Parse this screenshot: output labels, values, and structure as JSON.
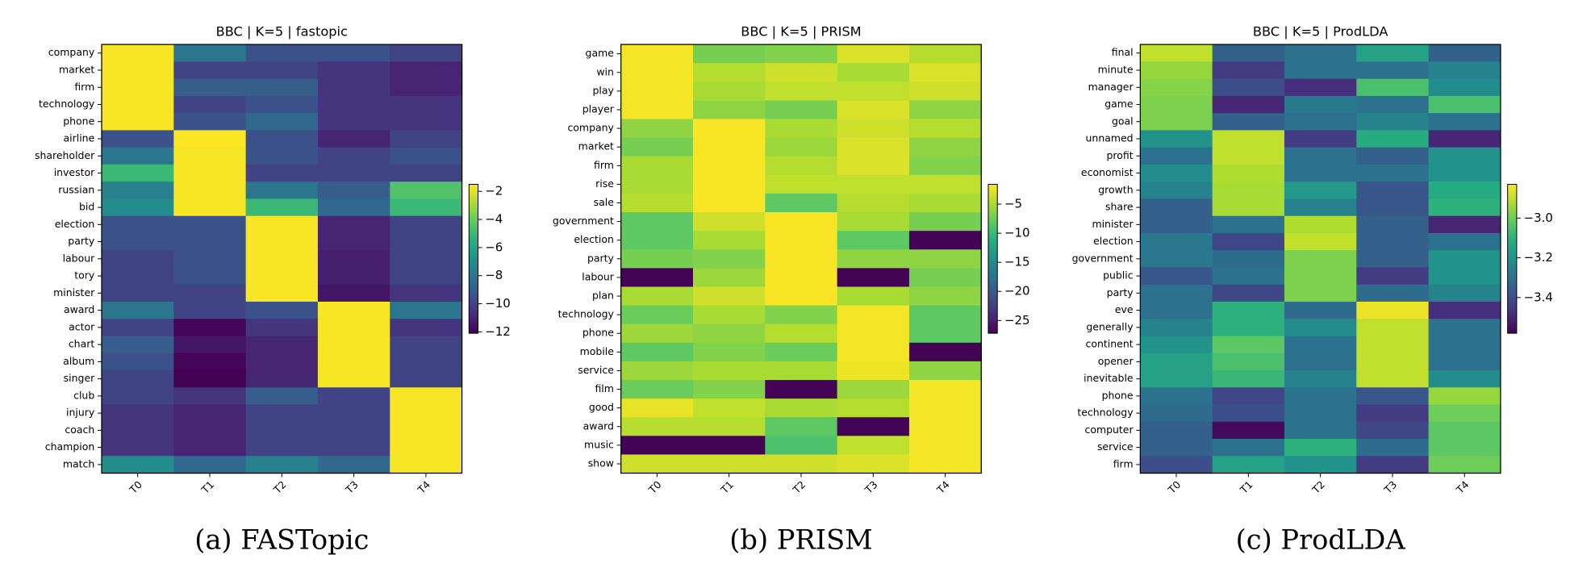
{
  "chart_data": [
    {
      "type": "heatmap",
      "title": "BBC | K=5 | fastopic",
      "caption": "(a) FASTopic",
      "colormap": "viridis",
      "categories": [
        "T0",
        "T1",
        "T2",
        "T3",
        "T4"
      ],
      "y_categories": [
        "company",
        "market",
        "firm",
        "technology",
        "phone",
        "airline",
        "shareholder",
        "investor",
        "russian",
        "bid",
        "election",
        "party",
        "labour",
        "tory",
        "minister",
        "award",
        "actor",
        "chart",
        "album",
        "singer",
        "club",
        "injury",
        "coach",
        "champion",
        "match"
      ],
      "values": [
        [
          -1.6,
          -8,
          -9.5,
          -9.5,
          -10
        ],
        [
          -1.6,
          -10,
          -10,
          -10.5,
          -11
        ],
        [
          -1.6,
          -9,
          -9,
          -10.5,
          -11
        ],
        [
          -1.6,
          -10,
          -9.5,
          -10.5,
          -10.5
        ],
        [
          -1.6,
          -9.5,
          -8.5,
          -10.5,
          -10.5
        ],
        [
          -9.5,
          -1.5,
          -9.5,
          -11,
          -10
        ],
        [
          -8,
          -1.6,
          -9.5,
          -10,
          -9.5
        ],
        [
          -5,
          -1.6,
          -10,
          -10,
          -10
        ],
        [
          -7.5,
          -1.6,
          -8,
          -9,
          -4.5
        ],
        [
          -7,
          -1.6,
          -5,
          -8.5,
          -5
        ],
        [
          -9.5,
          -9.5,
          -1.6,
          -11,
          -10
        ],
        [
          -9.5,
          -9.5,
          -1.6,
          -11,
          -10
        ],
        [
          -10,
          -9.5,
          -1.6,
          -11.2,
          -10
        ],
        [
          -10,
          -9.5,
          -1.6,
          -11.2,
          -10
        ],
        [
          -10,
          -10,
          -1.6,
          -11.5,
          -10.5
        ],
        [
          -8,
          -10,
          -9.5,
          -1.6,
          -8
        ],
        [
          -10,
          -12,
          -10.5,
          -1.6,
          -10.5
        ],
        [
          -9,
          -11.5,
          -11,
          -1.6,
          -10
        ],
        [
          -9.5,
          -12,
          -11,
          -1.6,
          -10
        ],
        [
          -10,
          -12.1,
          -11,
          -1.6,
          -10
        ],
        [
          -10,
          -10.5,
          -9,
          -10,
          -1.6
        ],
        [
          -10.5,
          -11,
          -10,
          -10,
          -1.6
        ],
        [
          -10.5,
          -11,
          -10,
          -10,
          -1.6
        ],
        [
          -10.5,
          -11,
          -10,
          -10,
          -1.6
        ],
        [
          -7,
          -8.5,
          -7.5,
          -8.5,
          -1.6
        ]
      ],
      "clim": [
        -12.1,
        -1.5
      ],
      "cticks": [
        {
          "value": -2,
          "label": "−2"
        },
        {
          "value": -4,
          "label": "−4"
        },
        {
          "value": -6,
          "label": "−6"
        },
        {
          "value": -8,
          "label": "−8"
        },
        {
          "value": -10,
          "label": "−10"
        },
        {
          "value": -12,
          "label": "−12"
        }
      ]
    },
    {
      "type": "heatmap",
      "title": "BBC | K=5 | PRISM",
      "caption": "(b) PRISM",
      "colormap": "viridis",
      "categories": [
        "T0",
        "T1",
        "T2",
        "T3",
        "T4"
      ],
      "y_categories": [
        "game",
        "win",
        "play",
        "player",
        "company",
        "market",
        "firm",
        "rise",
        "sale",
        "government",
        "election",
        "party",
        "labour",
        "plan",
        "technology",
        "phone",
        "mobile",
        "service",
        "film",
        "good",
        "award",
        "music",
        "show"
      ],
      "values": [
        [
          -2,
          -7,
          -6.5,
          -3,
          -4.5
        ],
        [
          -2,
          -4.5,
          -3.5,
          -5,
          -3
        ],
        [
          -2,
          -5,
          -4,
          -4,
          -3.5
        ],
        [
          -2,
          -6,
          -7,
          -3,
          -6
        ],
        [
          -6,
          -1.8,
          -5,
          -3.5,
          -4.5
        ],
        [
          -7,
          -1.8,
          -5.5,
          -3,
          -6
        ],
        [
          -5,
          -1.8,
          -4.5,
          -3,
          -6.5
        ],
        [
          -5,
          -1.8,
          -4,
          -4,
          -4
        ],
        [
          -4.5,
          -1.8,
          -8,
          -4.5,
          -5
        ],
        [
          -8,
          -3.5,
          -1.8,
          -5,
          -7
        ],
        [
          -8,
          -5,
          -1.8,
          -8,
          -27
        ],
        [
          -7,
          -6.5,
          -1.8,
          -6,
          -6
        ],
        [
          -27,
          -5.5,
          -1.8,
          -27,
          -7
        ],
        [
          -5,
          -3.5,
          -1.8,
          -5,
          -6
        ],
        [
          -7.5,
          -5,
          -6.5,
          -2,
          -8
        ],
        [
          -5.5,
          -6,
          -4.5,
          -2,
          -8
        ],
        [
          -8,
          -6.5,
          -7.5,
          -2,
          -27
        ],
        [
          -5.5,
          -5,
          -5,
          -2.2,
          -6
        ],
        [
          -7.5,
          -6.5,
          -27,
          -5.5,
          -2
        ],
        [
          -2.5,
          -4,
          -5,
          -4.5,
          -2
        ],
        [
          -4.5,
          -4.5,
          -8,
          -27,
          -2
        ],
        [
          -27,
          -27,
          -9,
          -4,
          -2
        ],
        [
          -3.5,
          -3.5,
          -3.5,
          -3,
          -2
        ]
      ],
      "clim": [
        -27.2,
        -1.6
      ],
      "cticks": [
        {
          "value": -5,
          "label": "−5"
        },
        {
          "value": -10,
          "label": "−10"
        },
        {
          "value": -15,
          "label": "−15"
        },
        {
          "value": -20,
          "label": "−20"
        },
        {
          "value": -25,
          "label": "−25"
        }
      ]
    },
    {
      "type": "heatmap",
      "title": "BBC | K=5 | ProdLDA",
      "caption": "(c) ProdLDA",
      "colormap": "viridis",
      "categories": [
        "T0",
        "T1",
        "T2",
        "T3",
        "T4"
      ],
      "y_categories": [
        "final",
        "minute",
        "manager",
        "game",
        "goal",
        "unnamed",
        "profit",
        "economist",
        "growth",
        "share",
        "minister",
        "election",
        "government",
        "public",
        "party",
        "eve",
        "generally",
        "continent",
        "opener",
        "inevitable",
        "phone",
        "technology",
        "computer",
        "service",
        "firm"
      ],
      "values": [
        [
          -2.9,
          -3.35,
          -3.3,
          -3.15,
          -3.35
        ],
        [
          -2.95,
          -3.45,
          -3.3,
          -3.3,
          -3.25
        ],
        [
          -2.97,
          -3.4,
          -3.48,
          -3.05,
          -3.22
        ],
        [
          -2.98,
          -3.5,
          -3.28,
          -3.3,
          -3.05
        ],
        [
          -2.98,
          -3.35,
          -3.3,
          -3.25,
          -3.3
        ],
        [
          -3.2,
          -2.9,
          -3.45,
          -3.12,
          -3.5
        ],
        [
          -3.3,
          -2.9,
          -3.3,
          -3.35,
          -3.2
        ],
        [
          -3.22,
          -2.92,
          -3.3,
          -3.3,
          -3.2
        ],
        [
          -3.25,
          -2.93,
          -3.18,
          -3.38,
          -3.12
        ],
        [
          -3.35,
          -2.93,
          -3.25,
          -3.38,
          -3.1
        ],
        [
          -3.35,
          -3.3,
          -2.92,
          -3.35,
          -3.5
        ],
        [
          -3.28,
          -3.42,
          -2.9,
          -3.35,
          -3.3
        ],
        [
          -3.28,
          -3.32,
          -2.98,
          -3.35,
          -3.2
        ],
        [
          -3.38,
          -3.3,
          -2.98,
          -3.45,
          -3.2
        ],
        [
          -3.3,
          -3.42,
          -2.98,
          -3.32,
          -3.25
        ],
        [
          -3.3,
          -3.1,
          -3.32,
          -2.85,
          -3.48
        ],
        [
          -3.25,
          -3.1,
          -3.22,
          -2.9,
          -3.3
        ],
        [
          -3.2,
          -3.02,
          -3.3,
          -2.9,
          -3.3
        ],
        [
          -3.15,
          -3.05,
          -3.3,
          -2.9,
          -3.3
        ],
        [
          -3.15,
          -3.08,
          -3.25,
          -2.9,
          -3.22
        ],
        [
          -3.3,
          -3.42,
          -3.3,
          -3.38,
          -2.95
        ],
        [
          -3.32,
          -3.4,
          -3.3,
          -3.45,
          -3.0
        ],
        [
          -3.35,
          -3.56,
          -3.3,
          -3.42,
          -3.02
        ],
        [
          -3.35,
          -3.3,
          -3.1,
          -3.32,
          -3.02
        ],
        [
          -3.4,
          -3.15,
          -3.2,
          -3.45,
          -3.0
        ]
      ],
      "clim": [
        -3.58,
        -2.83
      ],
      "cticks": [
        {
          "value": -3.0,
          "label": "−3.0"
        },
        {
          "value": -3.2,
          "label": "−3.2"
        },
        {
          "value": -3.4,
          "label": "−3.4"
        }
      ]
    }
  ]
}
